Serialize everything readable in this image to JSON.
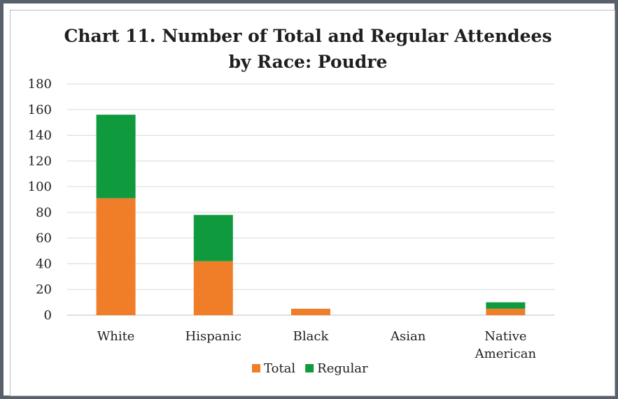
{
  "chart_data": {
    "type": "bar",
    "stacked": true,
    "title": "Chart 11. Number of Total and Regular Attendees",
    "subtitle": "by Race: Poudre",
    "xlabel": "",
    "ylabel": "",
    "categories": [
      "White",
      "Hispanic",
      "Black",
      "Asian",
      "Native American"
    ],
    "category_lines": [
      [
        "White"
      ],
      [
        "Hispanic"
      ],
      [
        "Black"
      ],
      [
        "Asian"
      ],
      [
        "Native",
        "American"
      ]
    ],
    "yticks": [
      "0",
      "20",
      "40",
      "60",
      "80",
      "100",
      "120",
      "140",
      "160",
      "180"
    ],
    "ylim": [
      0,
      180
    ],
    "grid": true,
    "legend": "bottom",
    "series": [
      {
        "name": "Total",
        "color": "#f07d27",
        "values": [
          91,
          42,
          5,
          0,
          5
        ]
      },
      {
        "name": "Regular",
        "color": "#0f9a3d",
        "values": [
          65,
          36,
          0,
          0,
          5
        ]
      }
    ]
  }
}
